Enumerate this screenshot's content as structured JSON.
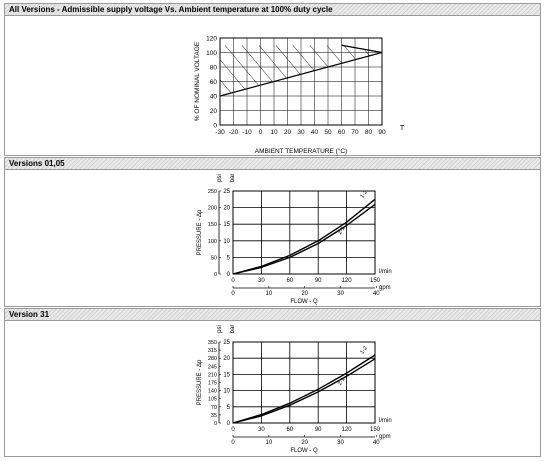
{
  "sections": [
    {
      "title": "All Versions - Admissible supply voltage Vs. Ambient temperature at 100% duty cycle",
      "chart_data": {
        "type": "line",
        "xlabel": "AMBIENT TEMPERATURE (°C)",
        "ylabel": "% OF NOMINAL VOLTAGE",
        "x_unit_label": "T",
        "x_ticks": [
          -30,
          -20,
          -10,
          0,
          10,
          20,
          30,
          40,
          50,
          60,
          70,
          80,
          90
        ],
        "y_ticks": [
          0,
          20,
          40,
          60,
          80,
          100,
          120
        ],
        "xlim": [
          -30,
          90
        ],
        "ylim": [
          0,
          120
        ],
        "grid": true,
        "series": [
          {
            "x": [
              -30,
              90
            ],
            "y": [
              40,
              100
            ]
          },
          {
            "x": [
              60,
              90
            ],
            "y": [
              110,
              100
            ]
          }
        ],
        "hatched_region": {
          "x": [
            -30,
            60,
            90,
            90,
            -30
          ],
          "y": [
            110,
            110,
            100,
            100,
            40
          ]
        }
      }
    },
    {
      "title": "Versions 01,05",
      "chart_data": {
        "type": "line",
        "xlabel": "FLOW - Q",
        "ylabel": "PRESSURE - Δp",
        "y_units": [
          "psi",
          "bar"
        ],
        "x_units": [
          "l/min",
          "gpm"
        ],
        "x_ticks_lmin": [
          0,
          30,
          60,
          90,
          120,
          150
        ],
        "x_ticks_gpm": [
          0,
          10,
          20,
          30,
          40
        ],
        "y_ticks_bar": [
          0,
          5,
          10,
          15,
          20,
          25
        ],
        "y_ticks_psi": [
          0,
          50,
          100,
          150,
          200,
          250
        ],
        "xlim": [
          0,
          150
        ],
        "ylim": [
          0,
          25
        ],
        "grid": true,
        "series": [
          {
            "name": "1-2",
            "x": [
              0,
              30,
              60,
              90,
              120,
              150
            ],
            "y": [
              0,
              2.3,
              5.6,
              10.0,
              15.6,
              22.5
            ]
          },
          {
            "name": "2-1",
            "x": [
              0,
              30,
              60,
              90,
              120,
              150
            ],
            "y": [
              0,
              2.0,
              5.0,
              9.2,
              14.6,
              21.0
            ]
          }
        ]
      }
    },
    {
      "title": "Version 31",
      "chart_data": {
        "type": "line",
        "xlabel": "FLOW - Q",
        "ylabel": "PRESSURE - Δp",
        "y_units": [
          "psi",
          "bar"
        ],
        "x_units": [
          "l/min",
          "gpm"
        ],
        "x_ticks_lmin": [
          0,
          30,
          60,
          90,
          120,
          150
        ],
        "x_ticks_gpm": [
          0,
          10,
          20,
          30,
          40
        ],
        "y_ticks_bar": [
          0,
          5,
          10,
          15,
          20,
          25
        ],
        "y_ticks_psi": [
          0,
          35,
          70,
          105,
          140,
          175,
          210,
          245,
          280,
          315,
          350
        ],
        "xlim": [
          0,
          150
        ],
        "ylim": [
          0,
          25
        ],
        "grid": true,
        "series": [
          {
            "name": "1-2",
            "x": [
              0,
              30,
              60,
              90,
              120,
              150
            ],
            "y": [
              0,
              2.6,
              6.1,
              10.4,
              15.4,
              21.0
            ]
          },
          {
            "name": "2-1",
            "x": [
              0,
              30,
              60,
              90,
              120,
              150
            ],
            "y": [
              0,
              2.2,
              5.5,
              9.6,
              14.4,
              19.8
            ]
          }
        ]
      }
    }
  ]
}
